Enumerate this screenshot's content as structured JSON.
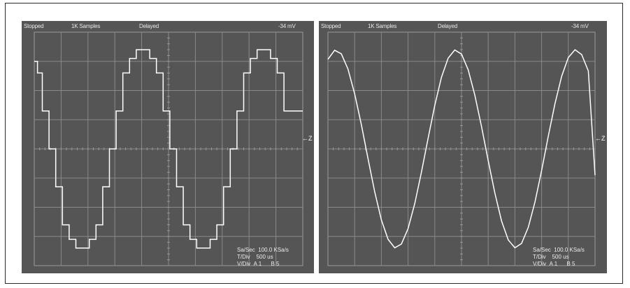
{
  "panels": [
    {
      "status": "Stopped",
      "samples": "1K Samples",
      "mode": "Delayed",
      "level": "-34 mV",
      "sa_label": "Sa/Sec",
      "sa_value": "100.0 KSa/s",
      "t_label": "T/Div",
      "t_value": "500 us",
      "v_label": "V/Div",
      "v_chan_a": "A 1",
      "v_chan_b": "B 5",
      "ground_marker": "←Z"
    },
    {
      "status": "Stopped",
      "samples": "1K Samples",
      "mode": "Delayed",
      "level": "-34 mV",
      "sa_label": "Sa/Sec",
      "sa_value": "100.0 KSa/s",
      "t_label": "T/Div",
      "t_value": "500 us",
      "v_label": "V/Div",
      "v_chan_a": "A 1",
      "v_chan_b": "B 5",
      "ground_marker": "←Z"
    }
  ],
  "colors": {
    "screen": "#555555",
    "trace": "#ffffff",
    "grid": "#8a8a8a"
  },
  "chart_data": [
    {
      "type": "line",
      "title": "",
      "xlabel": "",
      "ylabel": "",
      "x_divisions": 10,
      "y_divisions": 8,
      "xlim": [
        0,
        10
      ],
      "ylim": [
        -4,
        4
      ],
      "grid": true,
      "series": [
        {
          "x": [
            0.0,
            0.12,
            0.12,
            0.3,
            0.3,
            0.55,
            0.55,
            0.8,
            0.8,
            1.05,
            1.05,
            1.3,
            1.3,
            1.55,
            1.55,
            1.8,
            1.8,
            2.05,
            2.05,
            2.3,
            2.3,
            2.55,
            2.55,
            2.8,
            2.8,
            3.05,
            3.05,
            3.3,
            3.3,
            3.55,
            3.55,
            3.8,
            3.8,
            4.05,
            4.05,
            4.3,
            4.3,
            4.55,
            4.55,
            4.8,
            4.8,
            5.05,
            5.05,
            5.3,
            5.3,
            5.55,
            5.55,
            5.8,
            5.8,
            6.05,
            6.05,
            6.3,
            6.3,
            6.55,
            6.55,
            6.8,
            6.8,
            7.05,
            7.05,
            7.3,
            7.3,
            7.55,
            7.55,
            7.8,
            7.8,
            8.05,
            8.05,
            8.3,
            8.3,
            8.55,
            8.55,
            8.8,
            8.8,
            9.05,
            9.05,
            9.3,
            9.3,
            9.55,
            9.55,
            9.8,
            9.8,
            10.0
          ],
          "y": [
            3.0,
            3.0,
            2.6,
            2.6,
            1.3,
            1.3,
            0.0,
            0.0,
            -1.3,
            -1.3,
            -2.6,
            -2.6,
            -3.1,
            -3.1,
            -3.4,
            -3.4,
            -3.4,
            -3.4,
            -3.1,
            -3.1,
            -2.6,
            -2.6,
            -1.3,
            -1.3,
            0.0,
            0.0,
            1.3,
            1.3,
            2.6,
            2.6,
            3.1,
            3.1,
            3.4,
            3.4,
            3.4,
            3.4,
            3.1,
            3.1,
            2.6,
            2.6,
            1.3,
            1.3,
            0.0,
            0.0,
            -1.3,
            -1.3,
            -2.6,
            -2.6,
            -3.1,
            -3.1,
            -3.4,
            -3.4,
            -3.4,
            -3.4,
            -3.1,
            -3.1,
            -2.6,
            -2.6,
            -1.3,
            -1.3,
            0.0,
            0.0,
            1.3,
            1.3,
            2.6,
            2.6,
            3.1,
            3.1,
            3.4,
            3.4,
            3.4,
            3.4,
            3.1,
            3.1,
            2.6,
            2.6,
            1.3,
            1.3,
            1.3,
            1.3,
            1.3,
            1.3
          ]
        }
      ]
    },
    {
      "type": "line",
      "title": "",
      "xlabel": "",
      "ylabel": "",
      "x_divisions": 10,
      "y_divisions": 8,
      "xlim": [
        0,
        10
      ],
      "ylim": [
        -4,
        4
      ],
      "grid": true,
      "series": [
        {
          "x": [
            0.0,
            0.25,
            0.5,
            0.75,
            1.0,
            1.25,
            1.5,
            1.75,
            2.0,
            2.25,
            2.5,
            2.75,
            3.0,
            3.25,
            3.5,
            3.75,
            4.0,
            4.25,
            4.5,
            4.75,
            5.0,
            5.25,
            5.5,
            5.75,
            6.0,
            6.25,
            6.5,
            6.75,
            7.0,
            7.25,
            7.5,
            7.75,
            8.0,
            8.25,
            8.5,
            8.75,
            9.0,
            9.25,
            9.5,
            9.75,
            10.0
          ],
          "y": [
            3.07,
            3.38,
            3.26,
            2.74,
            1.89,
            0.83,
            -0.33,
            -1.46,
            -2.43,
            -3.1,
            -3.39,
            -3.26,
            -2.73,
            -1.87,
            -0.8,
            0.37,
            1.49,
            2.45,
            3.11,
            3.39,
            3.25,
            2.71,
            1.84,
            0.77,
            -0.4,
            -1.52,
            -2.47,
            -3.12,
            -3.39,
            -3.24,
            -2.69,
            -1.82,
            -0.74,
            0.43,
            1.55,
            2.49,
            3.13,
            3.4,
            3.23,
            2.67,
            -0.9
          ]
        }
      ]
    }
  ]
}
